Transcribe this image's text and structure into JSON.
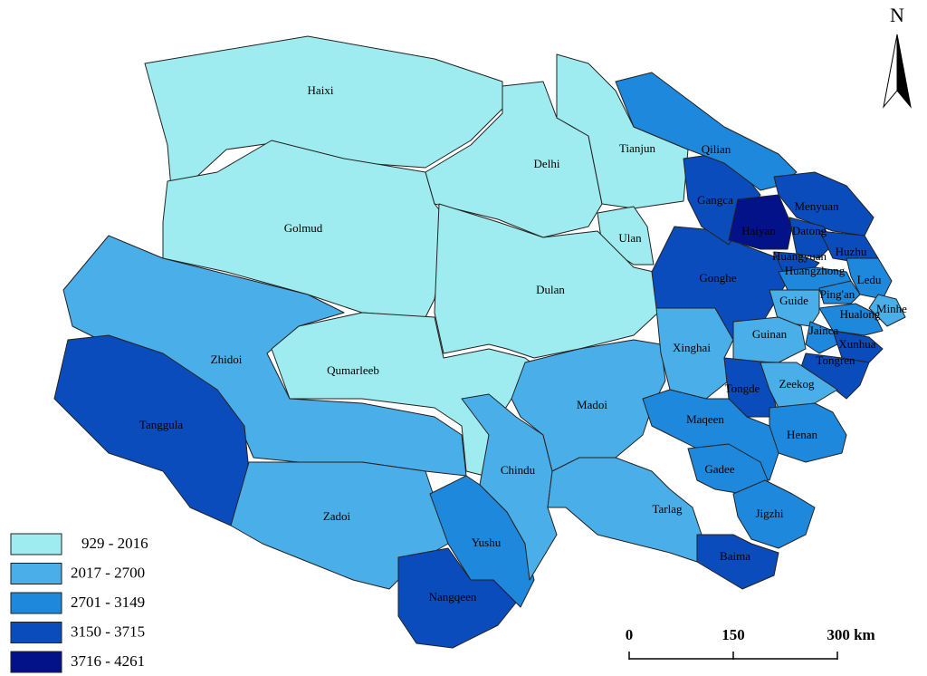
{
  "map": {
    "north": "N",
    "legend": [
      {
        "label": "929 - 2016",
        "color": "#9eecf0"
      },
      {
        "label": "2017 - 2700",
        "color": "#4aaee8"
      },
      {
        "label": "2701 - 3149",
        "color": "#1e88dc"
      },
      {
        "label": "3150 - 3715",
        "color": "#0a4cbc"
      },
      {
        "label": "3716 - 4261",
        "color": "#04128a"
      }
    ],
    "scale": [
      "0",
      "150",
      "300 km"
    ],
    "regions": [
      {
        "name": "Haixi",
        "class": 0
      },
      {
        "name": "Golmud",
        "class": 0
      },
      {
        "name": "Delhi",
        "class": 0
      },
      {
        "name": "Tianjun",
        "class": 0
      },
      {
        "name": "Ulan",
        "class": 0
      },
      {
        "name": "Dulan",
        "class": 0
      },
      {
        "name": "Zhidoi",
        "class": 1
      },
      {
        "name": "Qumarleeb",
        "class": 0
      },
      {
        "name": "Tanggula",
        "class": 3
      },
      {
        "name": "Zadoi",
        "class": 1
      },
      {
        "name": "Nangqeen",
        "class": 3
      },
      {
        "name": "Yushu",
        "class": 2
      },
      {
        "name": "Chindu",
        "class": 1
      },
      {
        "name": "Madoi",
        "class": 1
      },
      {
        "name": "Tarlag",
        "class": 1
      },
      {
        "name": "Xinghai",
        "class": 1
      },
      {
        "name": "Gonghe",
        "class": 3
      },
      {
        "name": "Gangca",
        "class": 3
      },
      {
        "name": "Haiyan",
        "class": 4
      },
      {
        "name": "Qilian",
        "class": 2
      },
      {
        "name": "Menyuan",
        "class": 3
      },
      {
        "name": "Datong",
        "class": 3
      },
      {
        "name": "Huangyuan",
        "class": 3
      },
      {
        "name": "Huzhu",
        "class": 3
      },
      {
        "name": "Huangzhong",
        "class": 2
      },
      {
        "name": "Ledu",
        "class": 2
      },
      {
        "name": "Ping'an",
        "class": 2
      },
      {
        "name": "Minhe",
        "class": 1
      },
      {
        "name": "Hualong",
        "class": 2
      },
      {
        "name": "Guide",
        "class": 1
      },
      {
        "name": "Guinan",
        "class": 1
      },
      {
        "name": "Jainca",
        "class": 2
      },
      {
        "name": "Xunhua",
        "class": 3
      },
      {
        "name": "Tongren",
        "class": 3
      },
      {
        "name": "Tongde",
        "class": 3
      },
      {
        "name": "Zeekog",
        "class": 1
      },
      {
        "name": "Henan",
        "class": 2
      },
      {
        "name": "Maqeen",
        "class": 2
      },
      {
        "name": "Gadee",
        "class": 2
      },
      {
        "name": "Jigzhi",
        "class": 2
      },
      {
        "name": "Baima",
        "class": 3
      }
    ]
  }
}
